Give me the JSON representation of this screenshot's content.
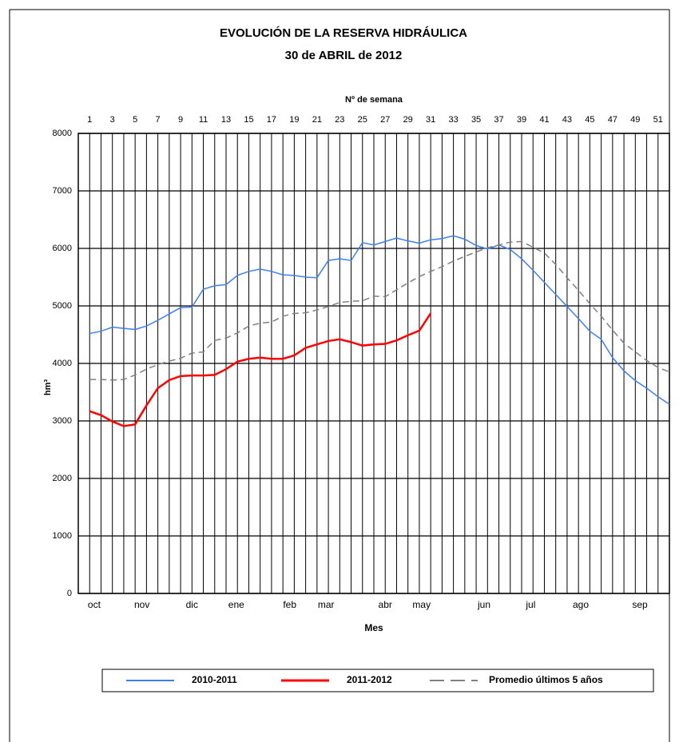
{
  "chart_data": {
    "type": "line",
    "title": "EVOLUCIÓN DE LA RESERVA HIDRÁULICA",
    "subtitle": "30 de ABRIL de 2012",
    "x_top_label": "Nº de semana",
    "x_label": "Mes",
    "y_label": "hm³",
    "x": [
      1,
      2,
      3,
      4,
      5,
      6,
      7,
      8,
      9,
      10,
      11,
      12,
      13,
      14,
      15,
      16,
      17,
      18,
      19,
      20,
      21,
      22,
      23,
      24,
      25,
      26,
      27,
      28,
      29,
      30,
      31,
      32,
      33,
      34,
      35,
      36,
      37,
      38,
      39,
      40,
      41,
      42,
      43,
      44,
      45,
      46,
      47,
      48,
      49,
      50,
      51,
      52
    ],
    "series": [
      {
        "name": "2010-2011",
        "color": "#3d7ff2",
        "dash": false,
        "values": [
          4520,
          4560,
          4630,
          4610,
          4590,
          4650,
          4750,
          4860,
          4970,
          4980,
          5290,
          5350,
          5370,
          5530,
          5600,
          5640,
          5600,
          5540,
          5530,
          5500,
          5490,
          5790,
          5820,
          5790,
          6100,
          6060,
          6120,
          6180,
          6130,
          6090,
          6150,
          6170,
          6220,
          6160,
          6050,
          5990,
          6060,
          5980,
          5820,
          5620,
          5410,
          5200,
          4990,
          4780,
          4560,
          4420,
          4100,
          3870,
          3700,
          3570,
          3420,
          3290
        ]
      },
      {
        "name": "2011-2012",
        "color": "#ff0000",
        "dash": false,
        "values": [
          3170,
          3100,
          2990,
          2910,
          2940,
          3270,
          3570,
          3710,
          3780,
          3790,
          3790,
          3800,
          3900,
          4030,
          4080,
          4100,
          4080,
          4080,
          4140,
          4270,
          4330,
          4390,
          4420,
          4370,
          4310,
          4330,
          4340,
          4400,
          4490,
          4570,
          4870,
          null,
          null,
          null,
          null,
          null,
          null,
          null,
          null,
          null,
          null,
          null,
          null,
          null,
          null,
          null,
          null,
          null,
          null,
          null,
          null,
          null
        ]
      },
      {
        "name": "Promedio últimos 5 años",
        "color": "#808080",
        "dash": true,
        "values": [
          3720,
          3720,
          3710,
          3720,
          3800,
          3900,
          3980,
          4040,
          4090,
          4180,
          4200,
          4400,
          4440,
          4530,
          4650,
          4700,
          4720,
          4820,
          4870,
          4880,
          4930,
          4990,
          5060,
          5080,
          5090,
          5170,
          5160,
          5280,
          5400,
          5510,
          5600,
          5680,
          5780,
          5860,
          5940,
          6010,
          6060,
          6110,
          6120,
          6020,
          5920,
          5720,
          5490,
          5270,
          5040,
          4820,
          4580,
          4350,
          4200,
          4050,
          3930,
          3850
        ]
      }
    ],
    "xlim": [
      0,
      52
    ],
    "xticks": [
      1,
      3,
      5,
      7,
      9,
      11,
      13,
      15,
      17,
      19,
      21,
      23,
      25,
      27,
      29,
      31,
      33,
      35,
      37,
      39,
      41,
      43,
      45,
      47,
      49,
      51
    ],
    "month_ticks": [
      {
        "value": 1.4,
        "label": "oct"
      },
      {
        "value": 5.6,
        "label": "nov"
      },
      {
        "value": 10.0,
        "label": "dic"
      },
      {
        "value": 13.9,
        "label": "ene"
      },
      {
        "value": 18.6,
        "label": "feb"
      },
      {
        "value": 21.8,
        "label": "mar"
      },
      {
        "value": 27.0,
        "label": "abr"
      },
      {
        "value": 30.2,
        "label": "may"
      },
      {
        "value": 35.7,
        "label": "jun"
      },
      {
        "value": 39.8,
        "label": "jul"
      },
      {
        "value": 44.2,
        "label": "ago"
      },
      {
        "value": 49.4,
        "label": "sep"
      }
    ],
    "ylim": [
      0,
      8000
    ],
    "yticks": [
      0,
      1000,
      2000,
      3000,
      4000,
      5000,
      6000,
      7000,
      8000
    ],
    "grid": true,
    "legend": "bottom"
  }
}
